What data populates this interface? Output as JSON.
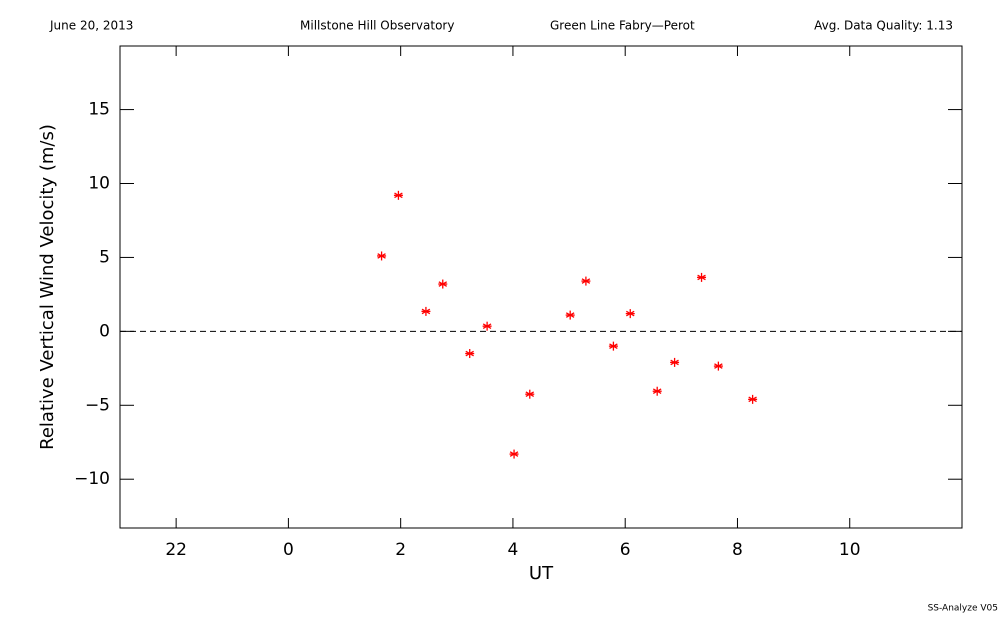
{
  "chart_data": {
    "type": "scatter",
    "header": [
      "June 20, 2013",
      "Millstone Hill Observatory",
      "Green Line Fabry—Perot",
      "Avg. Data Quality: 1.13"
    ],
    "footer": "SS-Analyze V05",
    "xlabel": "UT",
    "ylabel": "Relative Vertical Wind Velocity (m/s)",
    "xlim": [
      -3,
      12
    ],
    "xticks": [
      {
        "value": -2,
        "label": "22"
      },
      0,
      2,
      4,
      6,
      8,
      10
    ],
    "ylim": [
      -13.3,
      19.3
    ],
    "yticks": [
      {
        "value": -10,
        "label": "−10"
      },
      {
        "value": -5,
        "label": "−5"
      },
      0,
      5,
      10,
      15
    ],
    "hline": 0,
    "series": [
      {
        "color": "#ff0000",
        "x": [
          1.66,
          1.96,
          2.45,
          2.75,
          3.23,
          3.54,
          4.02,
          4.3,
          5.02,
          5.3,
          5.79,
          6.09,
          6.57,
          6.88,
          7.36,
          7.66,
          8.27
        ],
        "values": [
          5.1,
          9.2,
          1.35,
          3.2,
          -1.5,
          0.35,
          -8.3,
          -4.25,
          1.1,
          3.4,
          -1.0,
          1.2,
          -4.05,
          -2.1,
          3.65,
          -2.35,
          -4.6
        ]
      }
    ]
  }
}
